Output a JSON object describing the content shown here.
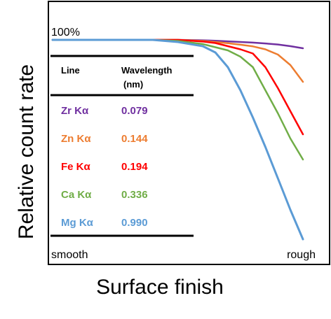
{
  "chart_data": {
    "type": "line",
    "title": "",
    "xlabel": "Surface finish",
    "ylabel": "Relative count rate",
    "x_start_label": "smooth",
    "x_end_label": "rough",
    "y_top_label": "100%",
    "grid": false,
    "x": [
      0,
      0.1,
      0.2,
      0.3,
      0.4,
      0.5,
      0.6,
      0.65,
      0.7,
      0.75,
      0.8,
      0.85,
      0.9,
      0.95,
      1.0
    ],
    "series": [
      {
        "name": "Zr Kα",
        "color": "#7030a0",
        "values": [
          100,
          100,
          100,
          100,
          100,
          100,
          99.8,
          99.6,
          99.3,
          99.0,
          98.7,
          98.3,
          97.8,
          97.0,
          96.0
        ]
      },
      {
        "name": "Zn Kα",
        "color": "#ed7d31",
        "values": [
          100,
          100,
          100,
          100,
          100,
          100,
          99.5,
          99.0,
          98.4,
          97.7,
          96.9,
          95.5,
          93.0,
          88.0,
          80.0
        ]
      },
      {
        "name": "Fe Kα",
        "color": "#ff0000",
        "values": [
          100,
          100,
          100,
          100,
          100,
          100,
          99.2,
          98.5,
          97.0,
          95.5,
          93.5,
          87.0,
          77.0,
          66.0,
          55.0
        ]
      },
      {
        "name": "Ca Kα",
        "color": "#70ad47",
        "values": [
          100,
          100,
          100,
          100,
          100,
          99.5,
          98.0,
          96.5,
          95.0,
          92.0,
          87.0,
          76.0,
          65.0,
          53.0,
          43.0
        ]
      },
      {
        "name": "Mg Kα",
        "color": "#5b9bd5",
        "values": [
          100,
          100,
          100,
          100,
          100,
          99.0,
          97.0,
          94.0,
          87.0,
          76.0,
          63.0,
          49.0,
          34.0,
          19.0,
          5.0
        ]
      }
    ],
    "ylim": [
      0,
      100
    ],
    "table": {
      "headers": [
        "Line",
        "Wavelength\n(nm)"
      ],
      "rows": [
        {
          "line": "Zr Kα",
          "wavelength": "0.079",
          "color": "#7030a0"
        },
        {
          "line": "Zn Kα",
          "wavelength": "0.144",
          "color": "#ed7d31"
        },
        {
          "line": "Fe Kα",
          "wavelength": "0.194",
          "color": "#ff0000"
        },
        {
          "line": "Ca Kα",
          "wavelength": "0.336",
          "color": "#70ad47"
        },
        {
          "line": "Mg Kα",
          "wavelength": "0.990",
          "color": "#5b9bd5"
        }
      ]
    }
  }
}
